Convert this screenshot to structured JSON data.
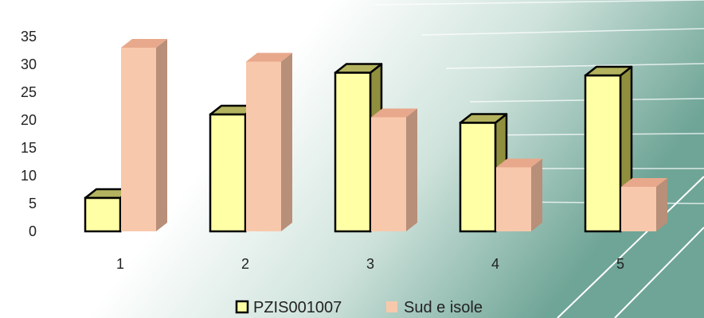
{
  "chart_data": {
    "type": "bar",
    "title": "",
    "xlabel": "",
    "ylabel": "",
    "categories": [
      "1",
      "2",
      "3",
      "4",
      "5"
    ],
    "series": [
      {
        "name": "PZIS001007",
        "values": [
          6,
          21,
          28.5,
          19.5,
          28
        ],
        "color": "#FFFFA6"
      },
      {
        "name": "Sud e isole",
        "values": [
          33,
          30.5,
          20.5,
          11.5,
          8
        ],
        "color": "#F8C8AC"
      }
    ],
    "ylim": [
      0,
      35
    ],
    "yticks": [
      "0",
      "5",
      "10",
      "15",
      "20",
      "25",
      "30",
      "35"
    ],
    "grid": false,
    "three_d": true,
    "legend_position": "bottom"
  }
}
